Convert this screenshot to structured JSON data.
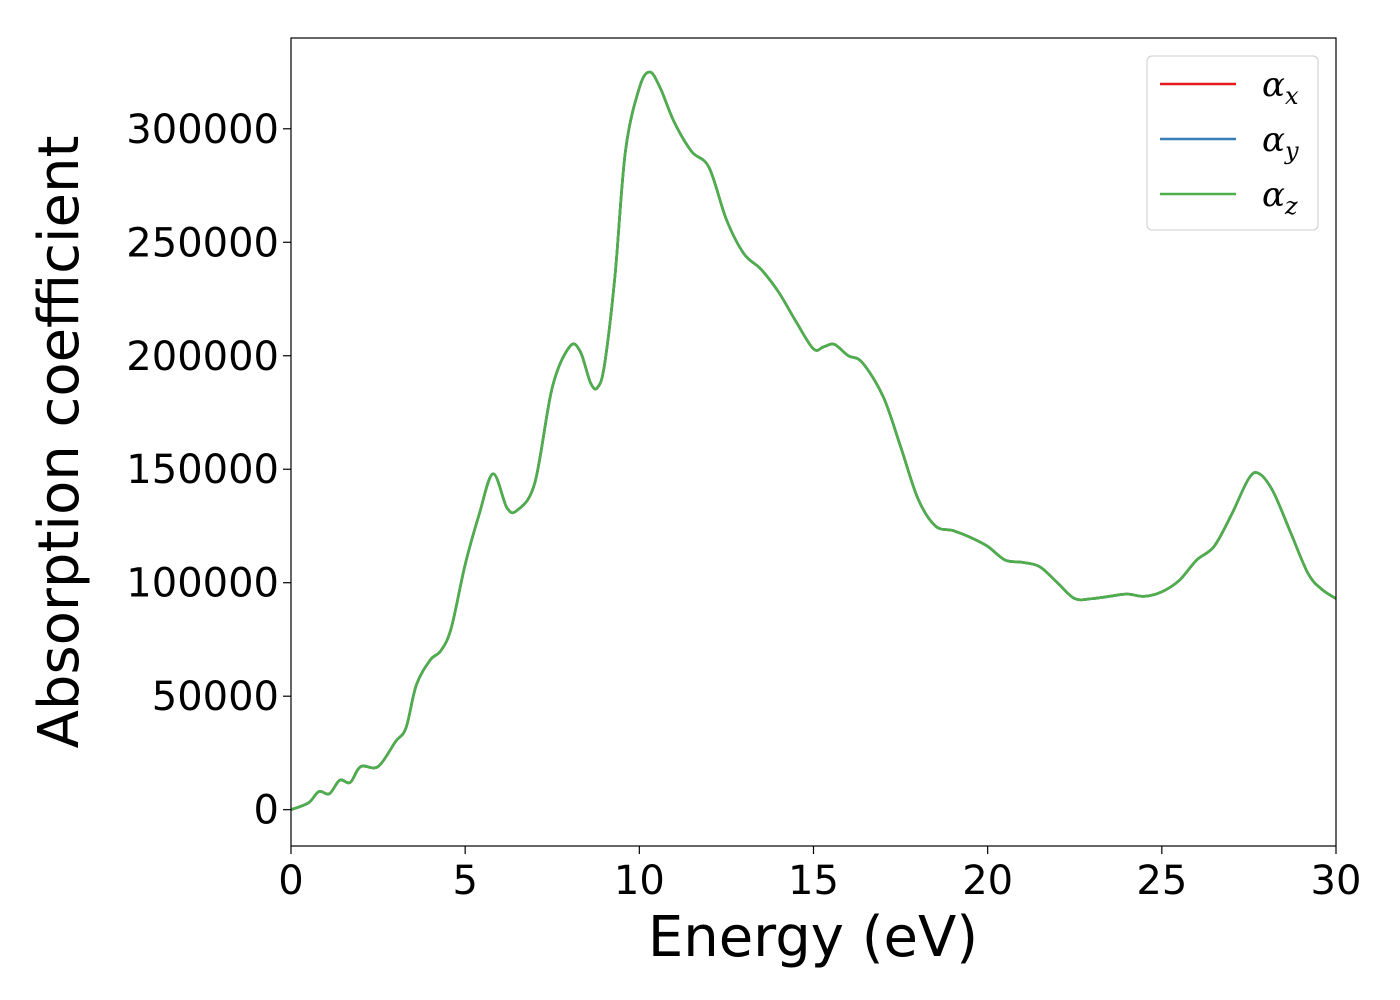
{
  "chart_data": {
    "type": "line",
    "title": "",
    "xlabel": "Energy (eV)",
    "ylabel": "Absorption coefficient",
    "xlim": [
      0,
      30
    ],
    "ylim": [
      -16000,
      340000
    ],
    "xticks": [
      0,
      5,
      10,
      15,
      20,
      25,
      30
    ],
    "xtick_labels": [
      "0",
      "5",
      "10",
      "15",
      "20",
      "25",
      "30"
    ],
    "yticks": [
      0,
      50000,
      100000,
      150000,
      200000,
      250000,
      300000
    ],
    "ytick_labels": [
      "0",
      "50000",
      "100000",
      "150000",
      "200000",
      "250000",
      "300000"
    ],
    "grid": false,
    "legend_position": "top-right",
    "x": [
      0,
      0.5,
      0.8,
      1.1,
      1.4,
      1.7,
      2.0,
      2.5,
      3.0,
      3.3,
      3.6,
      4.0,
      4.3,
      4.6,
      5.0,
      5.4,
      5.8,
      6.2,
      6.5,
      7.0,
      7.5,
      8.0,
      8.3,
      8.6,
      8.8,
      9.0,
      9.3,
      9.6,
      10.0,
      10.3,
      10.6,
      11.0,
      11.5,
      12.0,
      12.5,
      13.0,
      13.5,
      14.0,
      14.5,
      15.0,
      15.3,
      15.6,
      16.0,
      16.4,
      17.0,
      17.5,
      18.0,
      18.5,
      19.0,
      19.5,
      20.0,
      20.5,
      21.0,
      21.5,
      22.0,
      22.5,
      23.0,
      23.5,
      24.0,
      24.5,
      25.0,
      25.5,
      26.0,
      26.5,
      27.0,
      27.5,
      27.8,
      28.2,
      28.7,
      29.2,
      29.6,
      30.0
    ],
    "series": [
      {
        "name": "α_x",
        "label_main": "α",
        "label_sub": "x",
        "color": "#e41a1c",
        "values": [
          0,
          3000,
          8000,
          7000,
          13000,
          12000,
          19000,
          19000,
          30000,
          36000,
          55000,
          66000,
          70000,
          80000,
          108000,
          130000,
          148000,
          133000,
          132000,
          144000,
          186000,
          204000,
          202000,
          188000,
          186000,
          196000,
          235000,
          290000,
          318000,
          325000,
          318000,
          303000,
          290000,
          283000,
          260000,
          245000,
          238000,
          228000,
          215000,
          203000,
          204000,
          205000,
          200000,
          197000,
          182000,
          160000,
          137000,
          125000,
          123000,
          120000,
          116000,
          110000,
          109000,
          107000,
          100000,
          93000,
          93000,
          94000,
          95000,
          94000,
          96000,
          101000,
          110000,
          116000,
          130000,
          146000,
          148000,
          140000,
          122000,
          104000,
          97000,
          93000
        ]
      },
      {
        "name": "α_y",
        "label_main": "α",
        "label_sub": "y",
        "color": "#377eb8",
        "values": [
          0,
          3000,
          8000,
          7000,
          13000,
          12000,
          19000,
          19000,
          30000,
          36000,
          55000,
          66000,
          70000,
          80000,
          108000,
          130000,
          148000,
          133000,
          132000,
          144000,
          186000,
          204000,
          202000,
          188000,
          186000,
          196000,
          235000,
          290000,
          318000,
          325000,
          318000,
          303000,
          290000,
          283000,
          260000,
          245000,
          238000,
          228000,
          215000,
          203000,
          204000,
          205000,
          200000,
          197000,
          182000,
          160000,
          137000,
          125000,
          123000,
          120000,
          116000,
          110000,
          109000,
          107000,
          100000,
          93000,
          93000,
          94000,
          95000,
          94000,
          96000,
          101000,
          110000,
          116000,
          130000,
          146000,
          148000,
          140000,
          122000,
          104000,
          97000,
          93000
        ]
      },
      {
        "name": "α_z",
        "label_main": "α",
        "label_sub": "z",
        "color": "#4daf4a",
        "values": [
          0,
          3000,
          8000,
          7000,
          13000,
          12000,
          19000,
          19000,
          30000,
          36000,
          55000,
          66000,
          70000,
          80000,
          108000,
          130000,
          148000,
          133000,
          132000,
          144000,
          186000,
          204000,
          202000,
          188000,
          186000,
          196000,
          235000,
          290000,
          318000,
          325000,
          318000,
          303000,
          290000,
          283000,
          260000,
          245000,
          238000,
          228000,
          215000,
          203000,
          204000,
          205000,
          200000,
          197000,
          182000,
          160000,
          137000,
          125000,
          123000,
          120000,
          116000,
          110000,
          109000,
          107000,
          100000,
          93000,
          93000,
          94000,
          95000,
          94000,
          96000,
          101000,
          110000,
          116000,
          130000,
          146000,
          148000,
          140000,
          122000,
          104000,
          97000,
          93000
        ]
      }
    ]
  }
}
